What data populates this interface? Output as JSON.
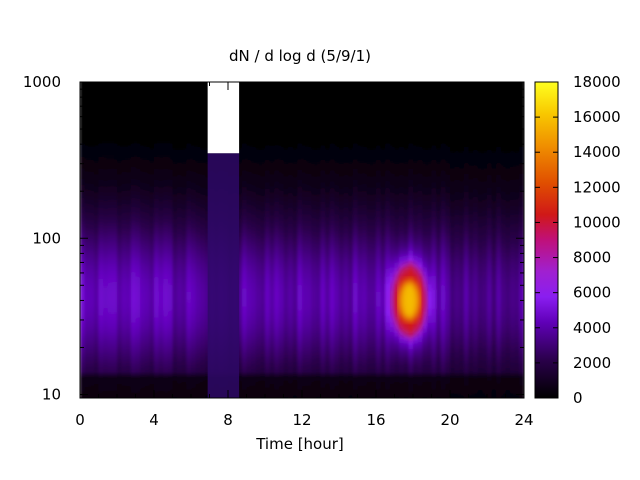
{
  "chart_data": {
    "type": "heatmap",
    "title": "dN / d log d (5/9/1)",
    "xlabel": "Time [hour]",
    "ylabel": "",
    "xlim": [
      0,
      24
    ],
    "ylim": [
      9.5,
      1000
    ],
    "yscale": "log",
    "x_ticks": [
      "0",
      "4",
      "8",
      "12",
      "16",
      "20",
      "24"
    ],
    "x_tick_values": [
      0,
      4,
      8,
      12,
      16,
      20,
      24
    ],
    "y_ticks": [
      "10",
      "100",
      "1000"
    ],
    "y_tick_values": [
      10,
      100,
      1000
    ],
    "colorbar": {
      "range": [
        0,
        18000
      ],
      "ticks": [
        "0",
        "2000",
        "4000",
        "6000",
        "8000",
        "10000",
        "12000",
        "14000",
        "16000",
        "18000"
      ],
      "tick_values": [
        0,
        2000,
        4000,
        6000,
        8000,
        10000,
        12000,
        14000,
        16000,
        18000
      ],
      "palette": "black-purple-red-orange-yellow"
    },
    "missing_data": [
      {
        "x_start": 6.9,
        "x_end": 8.6,
        "y_start": 350,
        "y_end": 1000
      }
    ],
    "features": [
      {
        "x": 17.8,
        "y": 40,
        "value": 16000,
        "note": "peak"
      }
    ]
  }
}
